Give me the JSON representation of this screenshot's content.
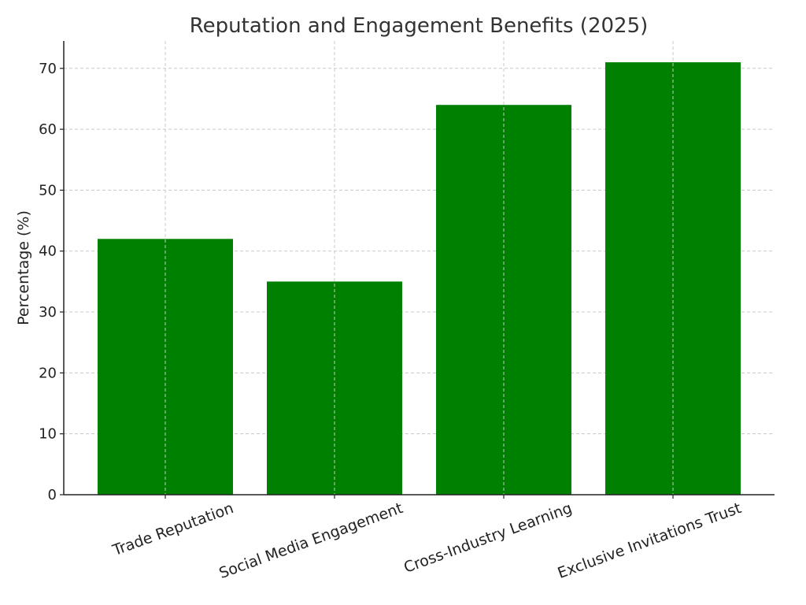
{
  "chart_data": {
    "type": "bar",
    "title": "Reputation and Engagement Benefits (2025)",
    "xlabel": "",
    "ylabel": "Percentage (%)",
    "categories": [
      "Trade Reputation",
      "Social Media Engagement",
      "Cross-Industry Learning",
      "Exclusive Invitations Trust"
    ],
    "values": [
      42,
      35,
      64,
      71
    ],
    "ylim": [
      0,
      74.5
    ],
    "yticks": [
      0,
      10,
      20,
      30,
      40,
      50,
      60,
      70
    ],
    "grid": true,
    "bar_color": "#008000"
  }
}
